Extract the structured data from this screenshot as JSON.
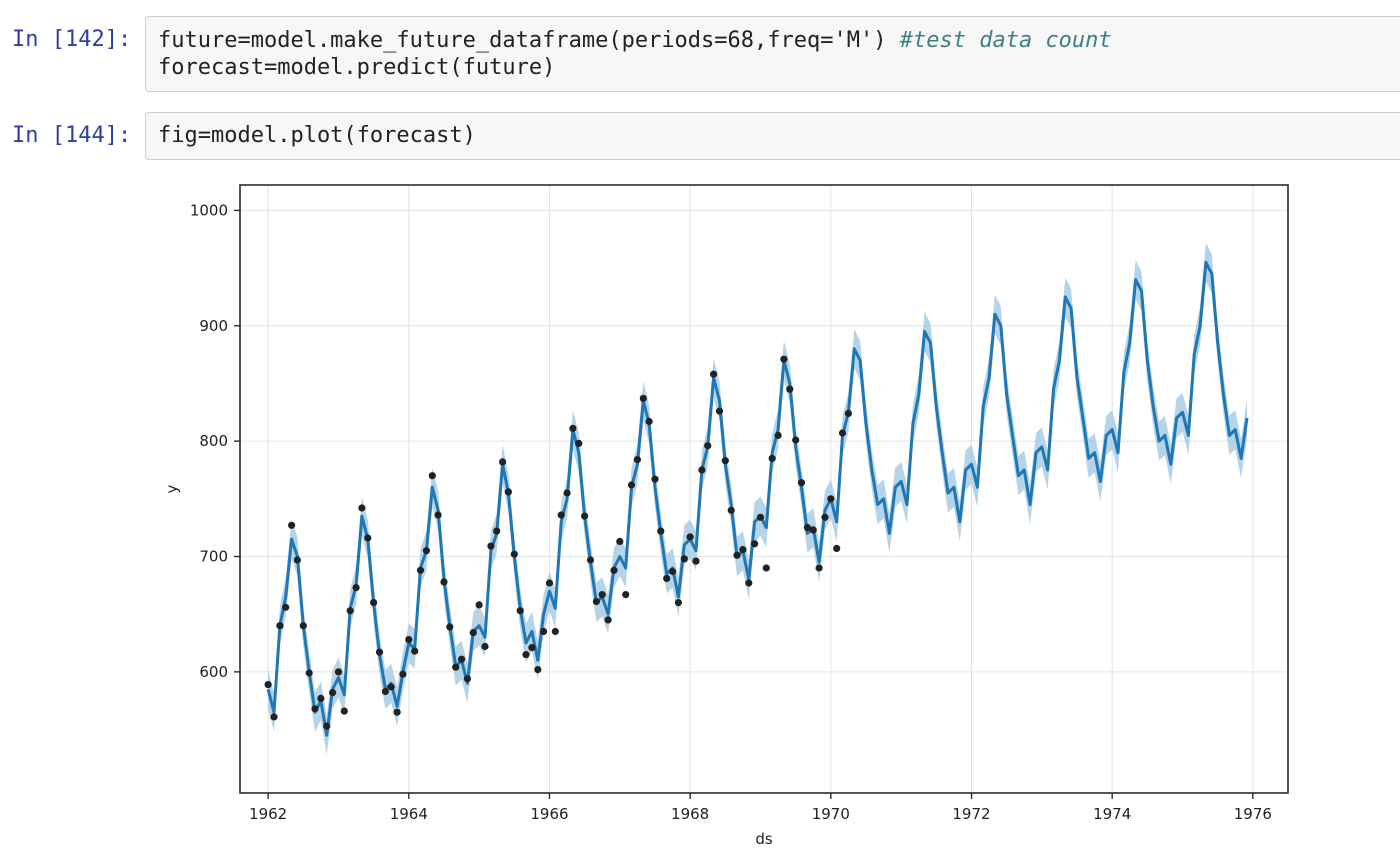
{
  "cells": [
    {
      "prompt": "In [142]:",
      "lines": [
        {
          "code": "future=model.make_future_dataframe(periods=68,freq='M') ",
          "comment": "#test data count"
        },
        {
          "code": "forecast=model.predict(future)",
          "comment": ""
        }
      ]
    },
    {
      "prompt": "In [144]:",
      "lines": [
        {
          "code": "fig=model.plot(forecast)",
          "comment": ""
        }
      ]
    }
  ],
  "colors": {
    "accent": "#1f77b4",
    "band": "#a9cce3",
    "observed": "#222222"
  },
  "chart_data": {
    "type": "line",
    "title": "",
    "xlabel": "ds",
    "ylabel": "y",
    "xlim": [
      1961.6,
      1976.5
    ],
    "ylim": [
      495,
      1022
    ],
    "x_ticks": [
      "1962",
      "1964",
      "1966",
      "1968",
      "1970",
      "1972",
      "1974",
      "1976"
    ],
    "y_ticks": [
      "600",
      "700",
      "800",
      "900",
      "1000"
    ],
    "grid": true,
    "band_halfwidth": 17,
    "series": [
      {
        "kind": "forecast",
        "x_start": "1962-01",
        "step": "monthly",
        "values": [
          585,
          565,
          640,
          665,
          715,
          700,
          640,
          600,
          565,
          575,
          545,
          585,
          595,
          580,
          655,
          675,
          735,
          715,
          660,
          615,
          585,
          590,
          570,
          600,
          625,
          620,
          690,
          705,
          760,
          740,
          680,
          640,
          605,
          610,
          590,
          635,
          640,
          630,
          705,
          720,
          780,
          755,
          700,
          655,
          625,
          635,
          610,
          650,
          670,
          655,
          730,
          750,
          810,
          790,
          735,
          695,
          660,
          665,
          650,
          690,
          700,
          690,
          760,
          780,
          835,
          815,
          760,
          720,
          685,
          690,
          665,
          710,
          715,
          705,
          775,
          795,
          855,
          835,
          780,
          745,
          700,
          705,
          680,
          730,
          735,
          725,
          790,
          810,
          870,
          850,
          795,
          760,
          720,
          725,
          695,
          740,
          750,
          730,
          805,
          825,
          880,
          870,
          815,
          775,
          745,
          750,
          720,
          760,
          765,
          745,
          815,
          840,
          895,
          885,
          830,
          790,
          755,
          760,
          730,
          775,
          780,
          760,
          830,
          855,
          910,
          900,
          840,
          805,
          770,
          775,
          745,
          790,
          795,
          775,
          845,
          870,
          925,
          915,
          855,
          820,
          785,
          790,
          765,
          805,
          810,
          790,
          860,
          885,
          940,
          930,
          870,
          830,
          800,
          805,
          780,
          820,
          825,
          805,
          875,
          900,
          955,
          945,
          885,
          840,
          805,
          810,
          785,
          820
        ]
      },
      {
        "kind": "observed",
        "x_start": "1962-01",
        "step": "monthly",
        "values": [
          589,
          561,
          640,
          656,
          727,
          697,
          640,
          599,
          568,
          577,
          553,
          582,
          600,
          566,
          653,
          673,
          742,
          716,
          660,
          617,
          583,
          587,
          565,
          598,
          628,
          618,
          688,
          705,
          770,
          736,
          678,
          639,
          604,
          611,
          594,
          634,
          658,
          622,
          709,
          722,
          782,
          756,
          702,
          653,
          615,
          621,
          602,
          635,
          677,
          635,
          736,
          755,
          811,
          798,
          735,
          697,
          661,
          667,
          645,
          688,
          713,
          667,
          762,
          784,
          837,
          817,
          767,
          722,
          681,
          687,
          660,
          698,
          717,
          696,
          775,
          796,
          858,
          826,
          783,
          740,
          701,
          706,
          677,
          711,
          734,
          690,
          785,
          805,
          871,
          845,
          801,
          764,
          725,
          723,
          690,
          734,
          750,
          707,
          807,
          824
        ]
      }
    ]
  }
}
